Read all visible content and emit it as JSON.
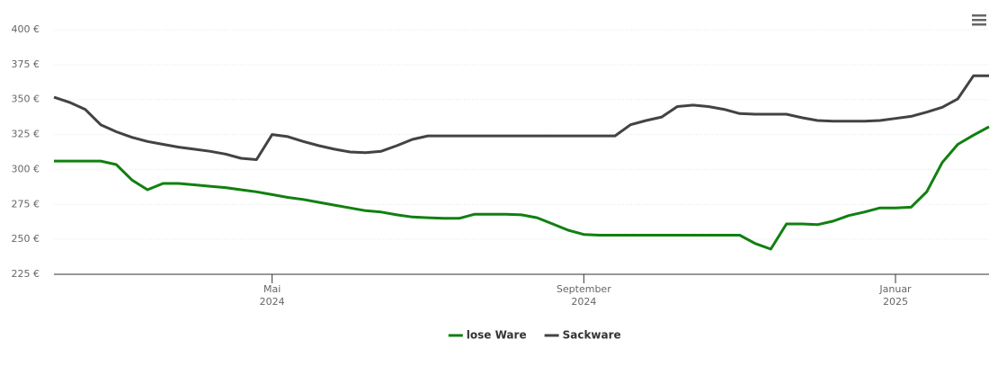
{
  "chart_data": {
    "type": "line",
    "categories": [
      null,
      null,
      null,
      null,
      null,
      null,
      null,
      null,
      null,
      null,
      null,
      null,
      null,
      null,
      [
        "Mai",
        "2024"
      ],
      null,
      null,
      null,
      null,
      null,
      null,
      null,
      null,
      null,
      null,
      null,
      null,
      null,
      null,
      null,
      null,
      null,
      null,
      null,
      [
        "September",
        "2024"
      ],
      null,
      null,
      null,
      null,
      null,
      null,
      null,
      null,
      null,
      null,
      null,
      null,
      null,
      null,
      null,
      null,
      null,
      null,
      null,
      [
        "Januar",
        "2025"
      ],
      null,
      null,
      null,
      null,
      null,
      null
    ],
    "series": [
      {
        "name": "lose Ware",
        "color": "#108010",
        "values": [
          306,
          306,
          306,
          306,
          303.5,
          292.5,
          285.5,
          290,
          290,
          289,
          288,
          287,
          285.5,
          284,
          282,
          280,
          278.5,
          276.5,
          274.5,
          272.5,
          270.5,
          269.5,
          267.5,
          266,
          265.5,
          265,
          265,
          268,
          268,
          268,
          267.5,
          265.5,
          261,
          256.5,
          253.5,
          253,
          253,
          253,
          253,
          253,
          253,
          253,
          253,
          253,
          253,
          247,
          243,
          261,
          261,
          260.5,
          263,
          267,
          269.5,
          272.5,
          272.5,
          273,
          284,
          305,
          318,
          324.5,
          330.5
        ]
      },
      {
        "name": "Sackware",
        "color": "#434343",
        "values": [
          351.7,
          348,
          343,
          332,
          327,
          323,
          320,
          318,
          316,
          314.5,
          313,
          311,
          308,
          307,
          325,
          323.5,
          320,
          317,
          314.5,
          312.5,
          312,
          313,
          317,
          321.5,
          324,
          324,
          324,
          324,
          324,
          324,
          324,
          324,
          324,
          324,
          324,
          324,
          324,
          332,
          335,
          337.5,
          345,
          346,
          345,
          343,
          340,
          339.5,
          339.5,
          339.5,
          337,
          335,
          334.5,
          334.5,
          334.5,
          335,
          336.5,
          338,
          341,
          344.5,
          350.5,
          367,
          367
        ]
      }
    ],
    "ylim": [
      225,
      400
    ],
    "yticks": [
      {
        "value": 225,
        "label": "225 €"
      },
      {
        "value": 250,
        "label": "250 €"
      },
      {
        "value": 275,
        "label": "275 €"
      },
      {
        "value": 300,
        "label": "300 €"
      },
      {
        "value": 325,
        "label": "325 €"
      },
      {
        "value": 350,
        "label": "350 €"
      },
      {
        "value": 375,
        "label": "375 €"
      },
      {
        "value": 400,
        "label": "400 €"
      }
    ],
    "grid": true,
    "legend": "bottom"
  }
}
